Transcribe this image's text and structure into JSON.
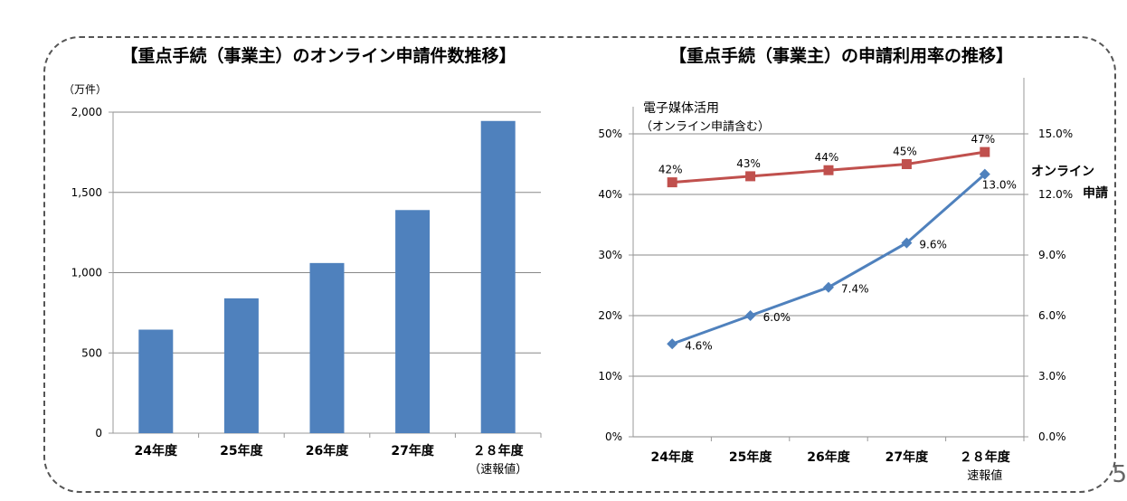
{
  "page_number": "5",
  "chart_data": [
    {
      "type": "bar",
      "title": "【重点手続（事業主）のオンライン申請件数推移】",
      "ylabel": "（万件）",
      "categories": [
        "24年度",
        "25年度",
        "26年度",
        "27年度",
        "２８年度"
      ],
      "category_notes": [
        "",
        "",
        "",
        "",
        "（速報値）"
      ],
      "values": [
        645,
        840,
        1060,
        1390,
        1945
      ],
      "ylim": [
        0,
        2000
      ],
      "yticks": [
        "0",
        "500",
        "1,000",
        "1,500",
        "2,000"
      ],
      "grid": true,
      "colors": {
        "bar": "#4f81bd"
      }
    },
    {
      "type": "line",
      "title": "【重点手続（事業主）の申請利用率の推移】",
      "categories": [
        "24年度",
        "25年度",
        "26年度",
        "27年度",
        "２８年度"
      ],
      "category_notes": [
        "",
        "",
        "",
        "",
        "速報値"
      ],
      "ylim_left": [
        0,
        50
      ],
      "yticks_left": [
        "0%",
        "10%",
        "20%",
        "30%",
        "40%",
        "50%"
      ],
      "ylim_right": [
        0,
        15
      ],
      "yticks_right": [
        "0.0%",
        "3.0%",
        "6.0%",
        "9.0%",
        "12.0%",
        "15.0%"
      ],
      "grid": true,
      "series": [
        {
          "name": "電子媒体活用",
          "name_line2": "（オンライン申請含む）",
          "axis": "left",
          "values": [
            42,
            43,
            44,
            45,
            47
          ],
          "labels": [
            "42%",
            "43%",
            "44%",
            "45%",
            "47%"
          ],
          "marker": "square",
          "color": "#c0504d"
        },
        {
          "name": "オンライン",
          "name_line2": "申請",
          "axis": "right",
          "values": [
            4.6,
            6.0,
            7.4,
            9.6,
            13.0
          ],
          "labels": [
            "4.6%",
            "6.0%",
            "7.4%",
            "9.6%",
            "13.0%"
          ],
          "marker": "diamond",
          "color": "#4f81bd"
        }
      ]
    }
  ]
}
